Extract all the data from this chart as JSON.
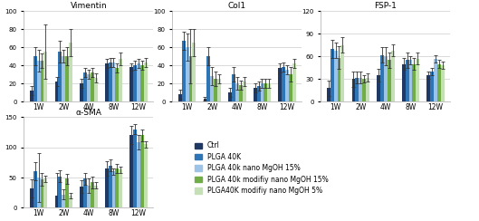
{
  "categories": [
    "1W",
    "2W",
    "4W",
    "8W",
    "12W"
  ],
  "colors": [
    "#1F3864",
    "#2E75B6",
    "#9DC3E6",
    "#70AD47",
    "#C5E0B4"
  ],
  "legend_labels": [
    "Ctrl",
    "PLGA 40K",
    "PLGA 40k nano MgOH 15%",
    "PLGA 40k modifiy nano MgOH 15%",
    "PLGA40K modifiy nano MgOH 5%"
  ],
  "vimentin": {
    "title": "Vimentin",
    "ylim": [
      0,
      100
    ],
    "yticks": [
      0,
      20,
      40,
      60,
      80,
      100
    ],
    "values": [
      [
        12,
        22,
        20,
        42,
        38
      ],
      [
        50,
        55,
        32,
        43,
        40
      ],
      [
        45,
        50,
        30,
        43,
        42
      ],
      [
        45,
        50,
        32,
        37,
        40
      ],
      [
        55,
        65,
        26,
        47,
        43
      ]
    ],
    "errors": [
      [
        5,
        5,
        5,
        5,
        4
      ],
      [
        10,
        12,
        5,
        5,
        5
      ],
      [
        12,
        7,
        5,
        5,
        5
      ],
      [
        8,
        10,
        5,
        5,
        5
      ],
      [
        30,
        15,
        5,
        7,
        5
      ]
    ]
  },
  "col1": {
    "title": "Col1",
    "ylim": [
      0,
      100
    ],
    "yticks": [
      0,
      20,
      40,
      60,
      80,
      100
    ],
    "values": [
      [
        8,
        3,
        10,
        15,
        37
      ],
      [
        67,
        50,
        30,
        17,
        38
      ],
      [
        60,
        28,
        20,
        20,
        35
      ],
      [
        50,
        25,
        18,
        20,
        30
      ],
      [
        65,
        25,
        22,
        20,
        42
      ]
    ],
    "errors": [
      [
        5,
        2,
        5,
        5,
        5
      ],
      [
        10,
        10,
        8,
        5,
        5
      ],
      [
        15,
        10,
        7,
        5,
        5
      ],
      [
        30,
        8,
        5,
        5,
        8
      ],
      [
        15,
        5,
        5,
        5,
        5
      ]
    ]
  },
  "fsp1": {
    "title": "FSP-1",
    "ylim": [
      0,
      120
    ],
    "yticks": [
      0,
      30,
      60,
      90,
      120
    ],
    "values": [
      [
        18,
        30,
        35,
        50,
        35
      ],
      [
        70,
        32,
        62,
        55,
        40
      ],
      [
        68,
        32,
        60,
        55,
        57
      ],
      [
        58,
        30,
        55,
        50,
        50
      ],
      [
        75,
        32,
        68,
        57,
        48
      ]
    ],
    "errors": [
      [
        10,
        10,
        8,
        8,
        5
      ],
      [
        12,
        8,
        10,
        10,
        5
      ],
      [
        10,
        8,
        12,
        5,
        5
      ],
      [
        15,
        5,
        10,
        8,
        5
      ],
      [
        10,
        5,
        8,
        8,
        5
      ]
    ]
  },
  "asma": {
    "title": "α-SMA",
    "ylim": [
      0,
      150
    ],
    "yticks": [
      0,
      50,
      100,
      150
    ],
    "values": [
      [
        32,
        20,
        35,
        65,
        120
      ],
      [
        60,
        52,
        48,
        70,
        130
      ],
      [
        50,
        22,
        37,
        60,
        108
      ],
      [
        47,
        48,
        42,
        65,
        120
      ],
      [
        48,
        20,
        37,
        63,
        105
      ]
    ],
    "errors": [
      [
        15,
        38,
        10,
        12,
        15
      ],
      [
        15,
        10,
        10,
        10,
        8
      ],
      [
        40,
        8,
        12,
        5,
        12
      ],
      [
        10,
        8,
        10,
        8,
        10
      ],
      [
        5,
        5,
        5,
        5,
        5
      ]
    ]
  },
  "background_color": "#FFFFFF"
}
